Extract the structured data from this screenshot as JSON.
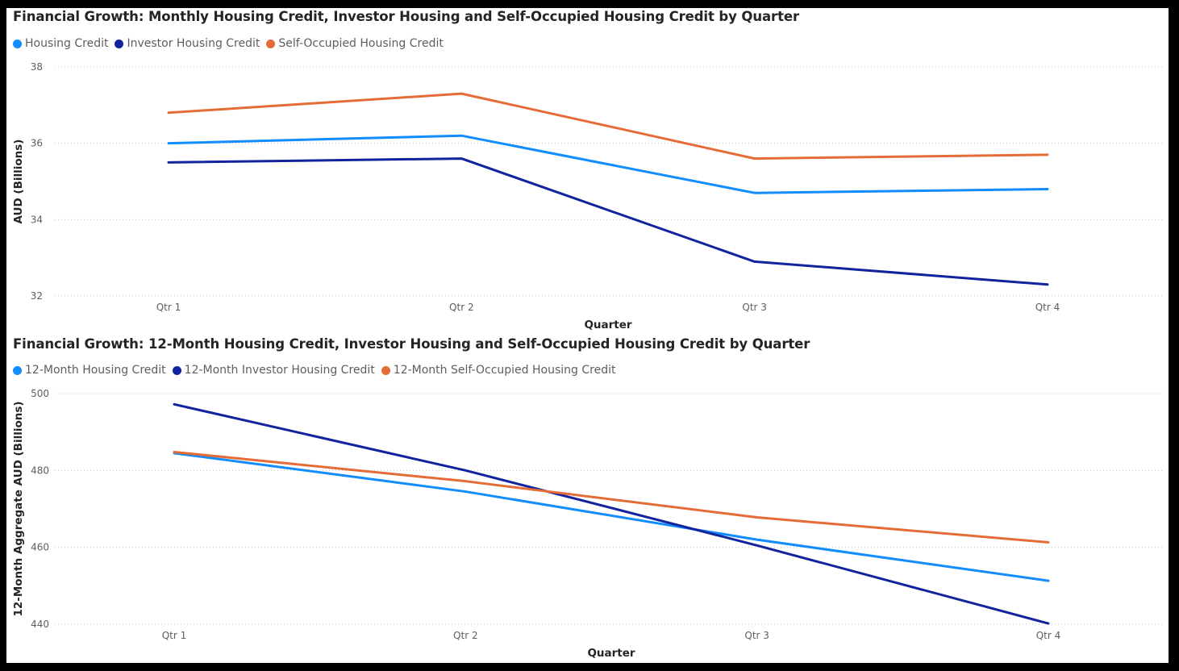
{
  "chart_data": [
    {
      "type": "line",
      "title": "Financial Growth: Monthly Housing Credit, Investor Housing and Self-Occupied Housing Credit by Quarter",
      "xlabel": "Quarter",
      "ylabel": "AUD (Billions)",
      "categories": [
        "Qtr 1",
        "Qtr 2",
        "Qtr 3",
        "Qtr 4"
      ],
      "ylim": [
        32,
        38
      ],
      "yticks": [
        32,
        34,
        36,
        38
      ],
      "grid": true,
      "legend_position": "top-left",
      "series": [
        {
          "name": "Housing Credit",
          "color": "#118DFF",
          "values": [
            36.0,
            36.2,
            34.7,
            34.8
          ]
        },
        {
          "name": "Investor Housing Credit",
          "color": "#12239E",
          "values": [
            35.5,
            35.6,
            32.9,
            32.3
          ]
        },
        {
          "name": "Self-Occupied Housing Credit",
          "color": "#E66C37",
          "values": [
            36.8,
            37.3,
            35.6,
            35.7
          ]
        }
      ]
    },
    {
      "type": "line",
      "title": "Financial Growth: 12-Month Housing Credit, Investor Housing and Self-Occupied Housing Credit by Quarter",
      "xlabel": "Quarter",
      "ylabel": "12-Month Aggregate AUD (Billions)",
      "categories": [
        "Qtr 1",
        "Qtr 2",
        "Qtr 3",
        "Qtr 4"
      ],
      "ylim": [
        440,
        500
      ],
      "yticks": [
        440,
        460,
        480,
        500
      ],
      "grid": true,
      "legend_position": "top-left",
      "series": [
        {
          "name": "12-Month Housing Credit",
          "color": "#118DFF",
          "values": [
            484.5,
            474.5,
            462.0,
            451.3
          ]
        },
        {
          "name": "12-Month Investor Housing Credit",
          "color": "#12239E",
          "values": [
            497.2,
            480.0,
            460.5,
            440.2
          ]
        },
        {
          "name": "12-Month Self-Occupied Housing Credit",
          "color": "#E66C37",
          "values": [
            484.8,
            477.2,
            467.8,
            461.3
          ]
        }
      ]
    }
  ]
}
